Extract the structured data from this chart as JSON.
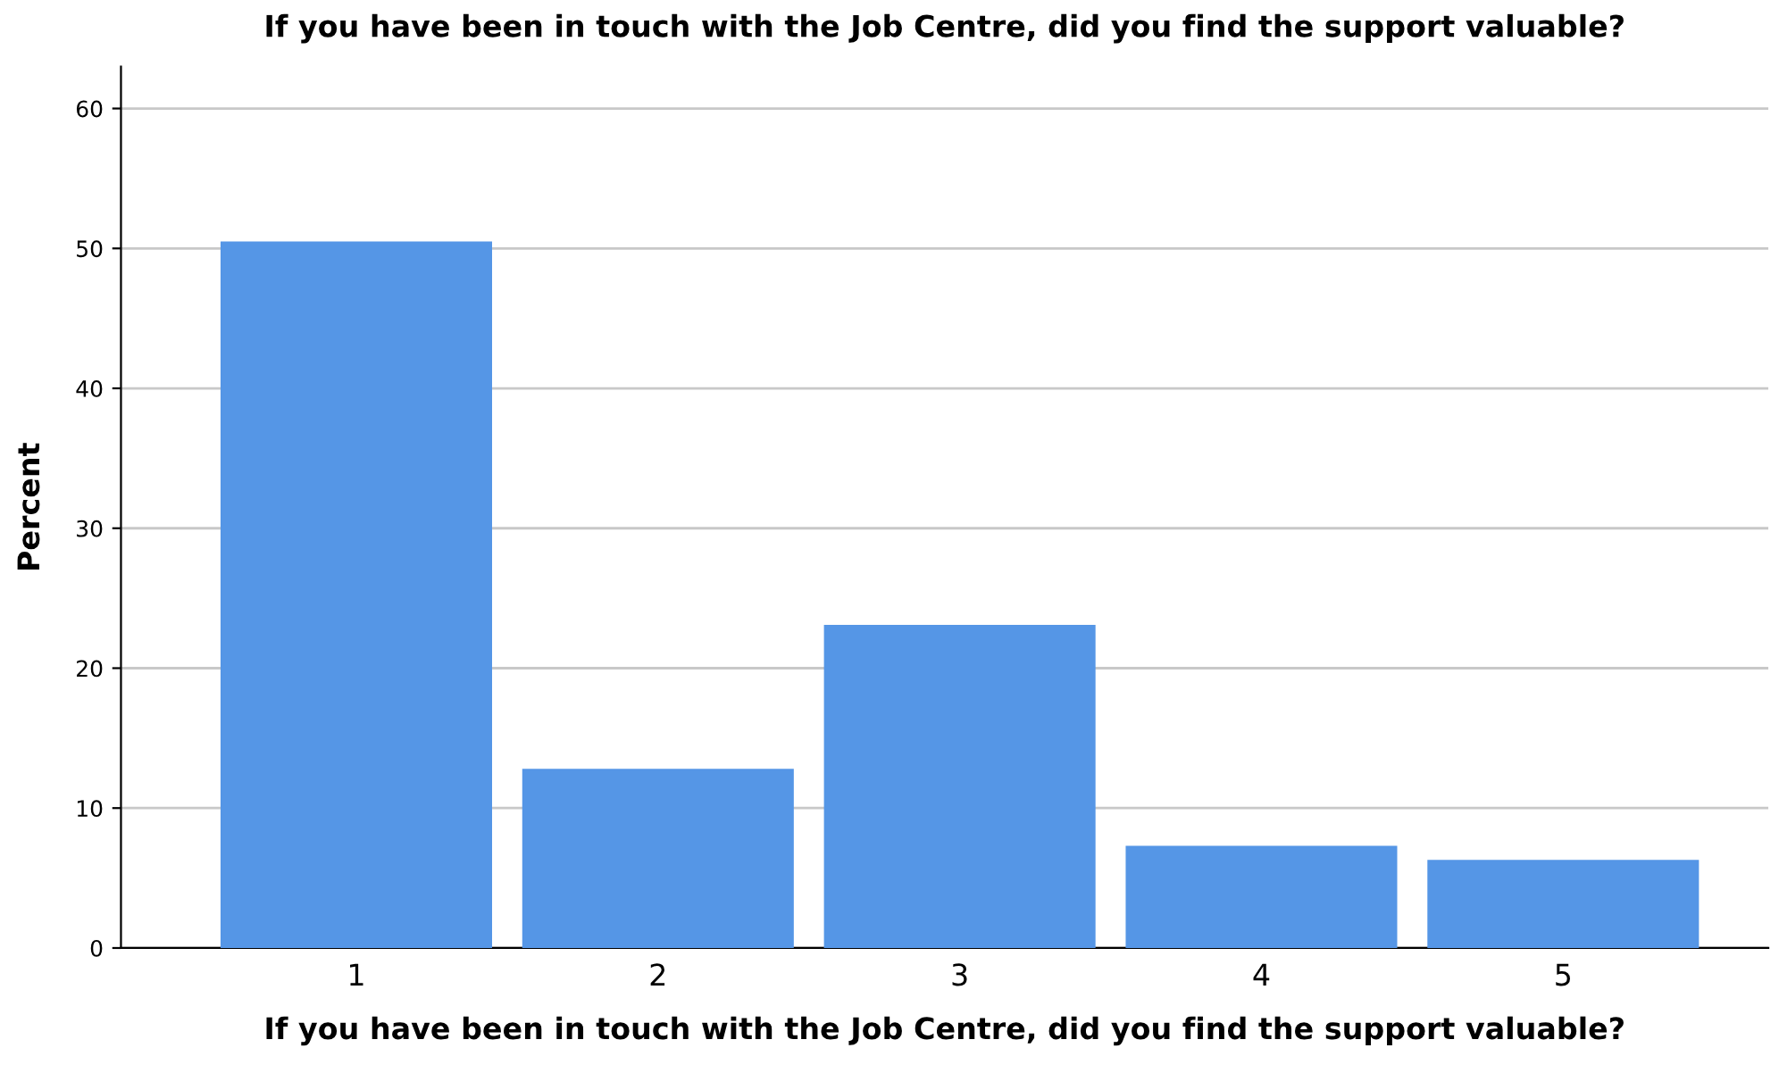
{
  "chart_data": {
    "type": "bar",
    "title": "If you have been in touch with the Job Centre, did you find the support valuable?",
    "xlabel": "If you have been in touch with the Job Centre, did you find the support valuable?",
    "ylabel": "Percent",
    "categories": [
      "1",
      "2",
      "3",
      "4",
      "5"
    ],
    "values": [
      50.5,
      12.8,
      23.1,
      7.3,
      6.3
    ],
    "color": "#5596e6",
    "ylim": [
      0,
      63
    ],
    "yticks": [
      0,
      10,
      20,
      30,
      40,
      50,
      60
    ],
    "grid": "y",
    "legend": false
  }
}
